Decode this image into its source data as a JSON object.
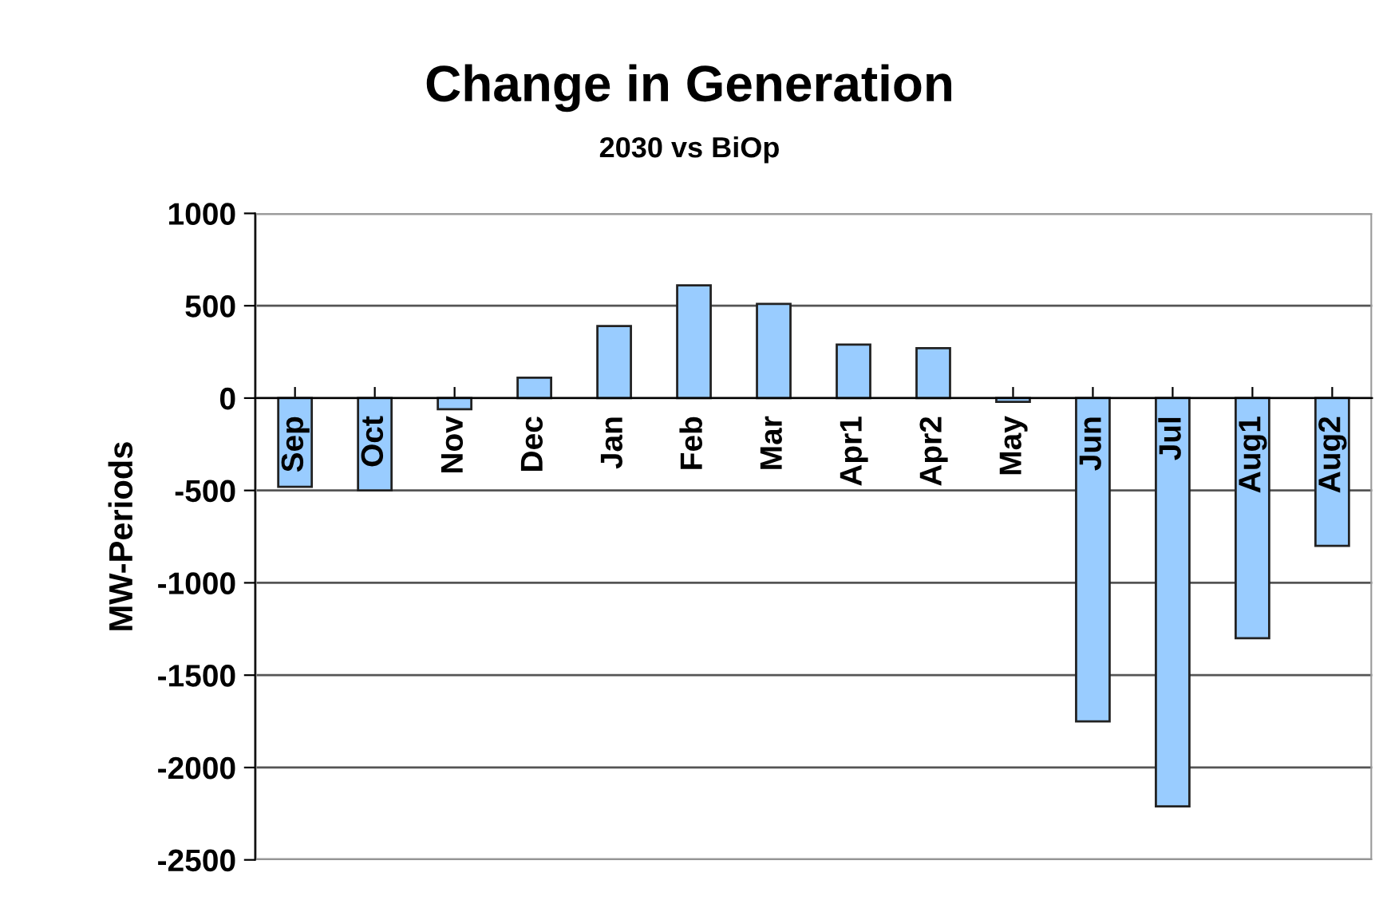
{
  "chart_data": {
    "type": "bar",
    "title": "Change in Generation",
    "subtitle": "2030 vs BiOp",
    "ylabel": "MW-Periods",
    "categories": [
      "Sep",
      "Oct",
      "Nov",
      "Dec",
      "Jan",
      "Feb",
      "Mar",
      "Apr1",
      "Apr2",
      "May",
      "Jun",
      "Jul",
      "Aug1",
      "Aug2"
    ],
    "values": [
      -480,
      -500,
      -60,
      110,
      390,
      610,
      510,
      290,
      270,
      -20,
      -1750,
      -2210,
      -1300,
      -800
    ],
    "color": "#99ccff",
    "ylim": [
      -2500,
      1000
    ],
    "yticks": [
      -2500,
      -2000,
      -1500,
      -1000,
      -500,
      0,
      500,
      1000
    ],
    "grid": "y"
  }
}
